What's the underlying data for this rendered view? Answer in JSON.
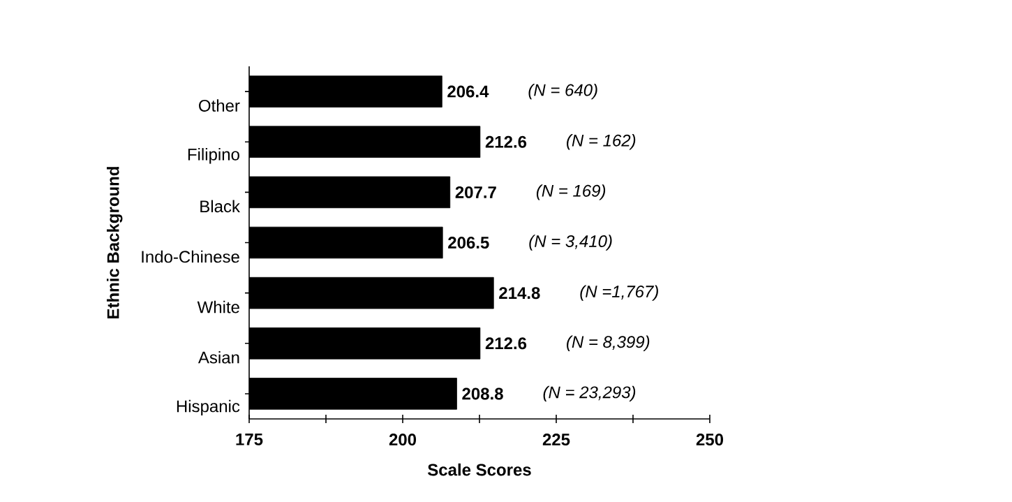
{
  "chart_data": {
    "type": "bar",
    "orientation": "horizontal",
    "xlabel": "Scale Scores",
    "ylabel": "Ethnic Background",
    "categories": [
      "Other",
      "Filipino",
      "Black",
      "Indo-Chinese",
      "White",
      "Asian",
      "Hispanic"
    ],
    "values": [
      206.4,
      212.6,
      207.7,
      206.5,
      214.8,
      212.6,
      208.8
    ],
    "color": "#000000",
    "data_labels": true,
    "xlim": [
      175,
      250
    ],
    "xticks": [
      175,
      {
        "value": 187.5,
        "label": null
      },
      200,
      {
        "value": 212.5,
        "label": null
      },
      225,
      {
        "value": 237.5,
        "label": null
      },
      250
    ],
    "annotations": [
      "(N = 640)",
      "(N = 162)",
      "(N = 169)",
      "(N = 3,410)",
      "(N =1,767)",
      "(N = 8,399)",
      "(N = 23,293)"
    ],
    "grid": false
  }
}
